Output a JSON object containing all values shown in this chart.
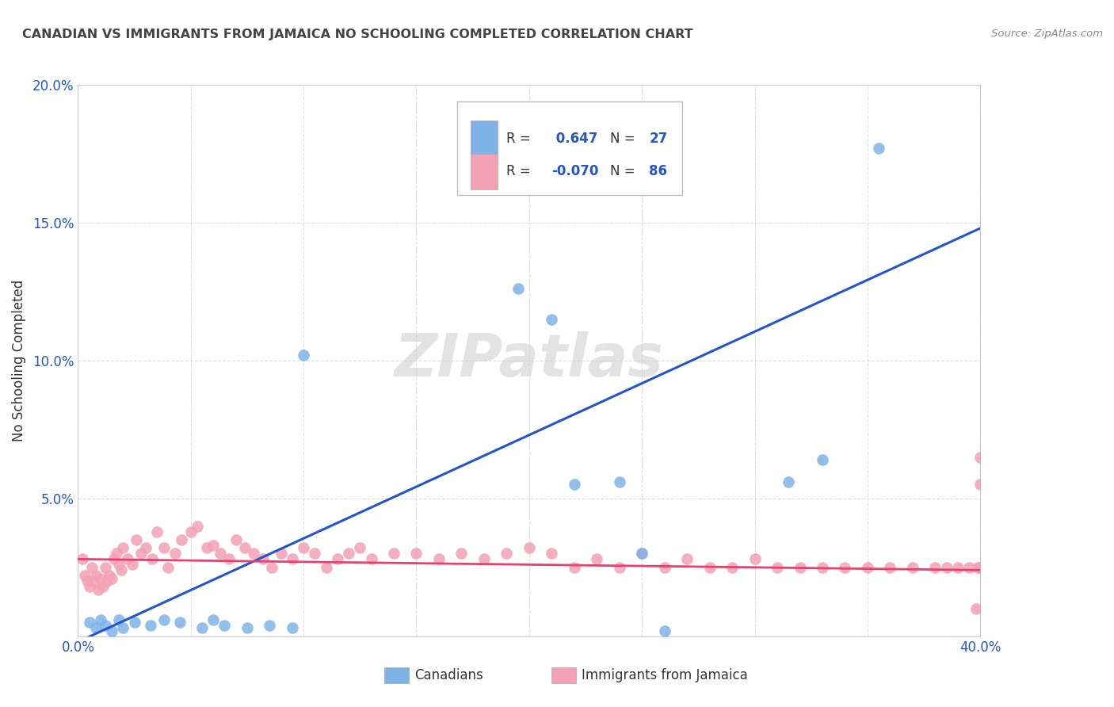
{
  "title": "CANADIAN VS IMMIGRANTS FROM JAMAICA NO SCHOOLING COMPLETED CORRELATION CHART",
  "source": "Source: ZipAtlas.com",
  "ylabel": "No Schooling Completed",
  "xlim": [
    0.0,
    0.4
  ],
  "ylim": [
    0.0,
    0.2
  ],
  "xticks": [
    0.0,
    0.05,
    0.1,
    0.15,
    0.2,
    0.25,
    0.3,
    0.35,
    0.4
  ],
  "yticks": [
    0.0,
    0.05,
    0.1,
    0.15,
    0.2
  ],
  "canadian_color": "#7EB3E8",
  "jamaican_color": "#F4A0B5",
  "canadian_line_color": "#2255CC",
  "jamaican_line_color": "#E8406E",
  "R_canadian": 0.647,
  "N_canadian": 27,
  "R_jamaican": -0.07,
  "N_jamaican": 86,
  "watermark": "ZIPatlas",
  "background_color": "#FFFFFF",
  "grid_color": "#DDDDDD",
  "canadians_x": [
    0.005,
    0.008,
    0.01,
    0.012,
    0.015,
    0.018,
    0.02,
    0.025,
    0.032,
    0.038,
    0.045,
    0.055,
    0.06,
    0.065,
    0.075,
    0.085,
    0.095,
    0.1,
    0.195,
    0.21,
    0.22,
    0.24,
    0.25,
    0.26,
    0.315,
    0.33,
    0.355
  ],
  "canadians_y": [
    0.005,
    0.003,
    0.006,
    0.004,
    0.002,
    0.006,
    0.003,
    0.005,
    0.004,
    0.006,
    0.005,
    0.003,
    0.006,
    0.004,
    0.003,
    0.004,
    0.003,
    0.102,
    0.126,
    0.115,
    0.055,
    0.056,
    0.03,
    0.002,
    0.056,
    0.064,
    0.177
  ],
  "jamaicans_x": [
    0.002,
    0.003,
    0.004,
    0.005,
    0.006,
    0.007,
    0.008,
    0.009,
    0.01,
    0.011,
    0.012,
    0.013,
    0.014,
    0.015,
    0.016,
    0.017,
    0.018,
    0.019,
    0.02,
    0.022,
    0.024,
    0.026,
    0.028,
    0.03,
    0.033,
    0.035,
    0.038,
    0.04,
    0.043,
    0.046,
    0.05,
    0.053,
    0.057,
    0.06,
    0.063,
    0.067,
    0.07,
    0.074,
    0.078,
    0.082,
    0.086,
    0.09,
    0.095,
    0.1,
    0.105,
    0.11,
    0.115,
    0.12,
    0.125,
    0.13,
    0.14,
    0.15,
    0.16,
    0.17,
    0.18,
    0.19,
    0.2,
    0.21,
    0.22,
    0.23,
    0.24,
    0.25,
    0.26,
    0.27,
    0.28,
    0.29,
    0.3,
    0.31,
    0.32,
    0.33,
    0.34,
    0.35,
    0.36,
    0.37,
    0.38,
    0.385,
    0.39,
    0.395,
    0.398,
    0.399,
    0.4,
    0.4,
    0.4,
    0.4,
    0.4,
    0.4,
    0.4
  ],
  "jamaicans_y": [
    0.028,
    0.022,
    0.02,
    0.018,
    0.025,
    0.02,
    0.022,
    0.017,
    0.021,
    0.018,
    0.025,
    0.02,
    0.022,
    0.021,
    0.028,
    0.03,
    0.026,
    0.024,
    0.032,
    0.028,
    0.026,
    0.035,
    0.03,
    0.032,
    0.028,
    0.038,
    0.032,
    0.025,
    0.03,
    0.035,
    0.038,
    0.04,
    0.032,
    0.033,
    0.03,
    0.028,
    0.035,
    0.032,
    0.03,
    0.028,
    0.025,
    0.03,
    0.028,
    0.032,
    0.03,
    0.025,
    0.028,
    0.03,
    0.032,
    0.028,
    0.03,
    0.03,
    0.028,
    0.03,
    0.028,
    0.03,
    0.032,
    0.03,
    0.025,
    0.028,
    0.025,
    0.03,
    0.025,
    0.028,
    0.025,
    0.025,
    0.028,
    0.025,
    0.025,
    0.025,
    0.025,
    0.025,
    0.025,
    0.025,
    0.025,
    0.025,
    0.025,
    0.025,
    0.01,
    0.025,
    0.025,
    0.025,
    0.025,
    0.025,
    0.065,
    0.055,
    0.025
  ],
  "blue_line_x": [
    0.0,
    0.4
  ],
  "blue_line_y": [
    -0.002,
    0.148
  ],
  "pink_line_x": [
    0.0,
    0.4
  ],
  "pink_line_y": [
    0.028,
    0.024
  ]
}
